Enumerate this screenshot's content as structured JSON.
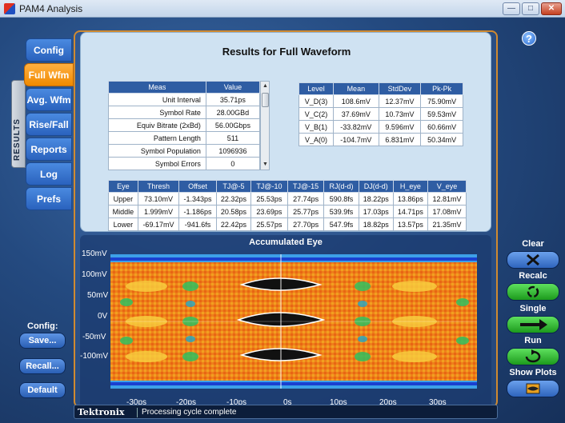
{
  "window": {
    "title": "PAM4 Analysis"
  },
  "side_tab": "RESULTS",
  "nav_tabs": [
    {
      "label": "Config"
    },
    {
      "label": "Full Wfm",
      "active": true
    },
    {
      "label": "Avg. Wfm"
    },
    {
      "label": "Rise/Fall"
    },
    {
      "label": "Reports"
    },
    {
      "label": "Log"
    },
    {
      "label": "Prefs"
    }
  ],
  "results": {
    "title": "Results for Full Waveform",
    "meas_table": {
      "headers": [
        "Meas",
        "Value"
      ],
      "rows": [
        [
          "Unit Interval",
          "35.71ps"
        ],
        [
          "Symbol Rate",
          "28.00GBd"
        ],
        [
          "Equiv Bitrate (2xBd)",
          "56.00Gbps"
        ],
        [
          "Pattern Length",
          "511"
        ],
        [
          "Symbol Population",
          "1096936"
        ],
        [
          "Symbol Errors",
          "0"
        ]
      ]
    },
    "level_table": {
      "headers": [
        "Level",
        "Mean",
        "StdDev",
        "Pk-Pk"
      ],
      "rows": [
        [
          "V_D(3)",
          "108.6mV",
          "12.37mV",
          "75.90mV"
        ],
        [
          "V_C(2)",
          "37.69mV",
          "10.73mV",
          "59.53mV"
        ],
        [
          "V_B(1)",
          "-33.82mV",
          "9.596mV",
          "60.66mV"
        ],
        [
          "V_A(0)",
          "-104.7mV",
          "6.831mV",
          "50.34mV"
        ]
      ]
    },
    "eye_table": {
      "headers": [
        "Eye",
        "Thresh",
        "Offset",
        "TJ@-5",
        "TJ@-10",
        "TJ@-15",
        "RJ(d-d)",
        "DJ(d-d)",
        "H_eye",
        "V_eye"
      ],
      "rows": [
        [
          "Upper",
          "73.10mV",
          "-1.343ps",
          "22.32ps",
          "25.53ps",
          "27.74ps",
          "590.8fs",
          "18.22ps",
          "13.86ps",
          "12.81mV"
        ],
        [
          "Middle",
          "1.999mV",
          "-1.186ps",
          "20.58ps",
          "23.69ps",
          "25.77ps",
          "539.9fs",
          "17.03ps",
          "14.71ps",
          "17.08mV"
        ],
        [
          "Lower",
          "-69.17mV",
          "-941.6fs",
          "22.42ps",
          "25.57ps",
          "27.70ps",
          "547.9fs",
          "18.82ps",
          "13.57ps",
          "21.35mV"
        ]
      ]
    }
  },
  "plot": {
    "title": "Accumulated Eye",
    "y_ticks": [
      "150mV",
      "100mV",
      "50mV",
      "0V",
      "-50mV",
      "-100mV"
    ],
    "x_ticks": [
      "-30ps",
      "-20ps",
      "-10ps",
      "0s",
      "10ps",
      "20ps",
      "30ps"
    ]
  },
  "config": {
    "label": "Config:",
    "save": "Save...",
    "recall": "Recall...",
    "default": "Default"
  },
  "right_panel": {
    "clear": "Clear",
    "recalc": "Recalc",
    "single": "Single",
    "run": "Run",
    "show_plots": "Show Plots"
  },
  "status": {
    "brand": "Tektronix",
    "message": "Processing cycle complete"
  }
}
